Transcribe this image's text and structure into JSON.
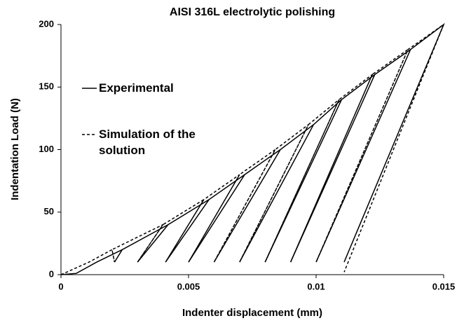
{
  "chart_data": {
    "type": "line",
    "title": "AISI 316L electrolytic polishing",
    "x_label": "Indenter displacement (mm)",
    "y_label": "Indentation Load (N)",
    "xlim": [
      0,
      0.015
    ],
    "xticks": [
      0,
      0.005,
      0.01,
      0.015
    ],
    "ylim": [
      0,
      200
    ],
    "yticks": [
      0,
      50,
      100,
      150,
      200
    ],
    "grid": false,
    "series": [
      {
        "name": "Experimental",
        "color": "#000000",
        "linestyle": "solid",
        "x": [
          0,
          0.0006,
          0.0014,
          0.0024,
          0.0021,
          0.0024,
          0.0042,
          0.003,
          0.0042,
          0.0058,
          0.0041,
          0.0058,
          0.0072,
          0.005,
          0.0072,
          0.0086,
          0.006,
          0.0086,
          0.0099,
          0.007,
          0.0099,
          0.011,
          0.008,
          0.011,
          0.0123,
          0.009,
          0.0123,
          0.0137,
          0.01,
          0.0137,
          0.015,
          0.0111
        ],
        "values": [
          0,
          1,
          10,
          20,
          10,
          20,
          40,
          10,
          40,
          60,
          10,
          60,
          80,
          10,
          80,
          100,
          10,
          100,
          120,
          10,
          120,
          140,
          10,
          140,
          160,
          10,
          160,
          180,
          10,
          180,
          200,
          10
        ]
      },
      {
        "name": "Simulation of the solution",
        "color": "#000000",
        "linestyle": "dashed",
        "x": [
          0,
          0.0011,
          0.002,
          0.0021,
          0.002,
          0.004,
          0.003,
          0.004,
          0.0056,
          0.0041,
          0.0056,
          0.007,
          0.005,
          0.007,
          0.0084,
          0.006,
          0.0084,
          0.0097,
          0.007,
          0.0097,
          0.0109,
          0.008,
          0.0109,
          0.0122,
          0.009,
          0.0122,
          0.0136,
          0.01,
          0.0136,
          0.015,
          0.0111
        ],
        "values": [
          0,
          10,
          20,
          10,
          20,
          40,
          10,
          40,
          60,
          10,
          60,
          80,
          10,
          80,
          100,
          10,
          100,
          120,
          10,
          120,
          140,
          10,
          140,
          160,
          10,
          160,
          180,
          10,
          180,
          200,
          2
        ]
      }
    ]
  }
}
